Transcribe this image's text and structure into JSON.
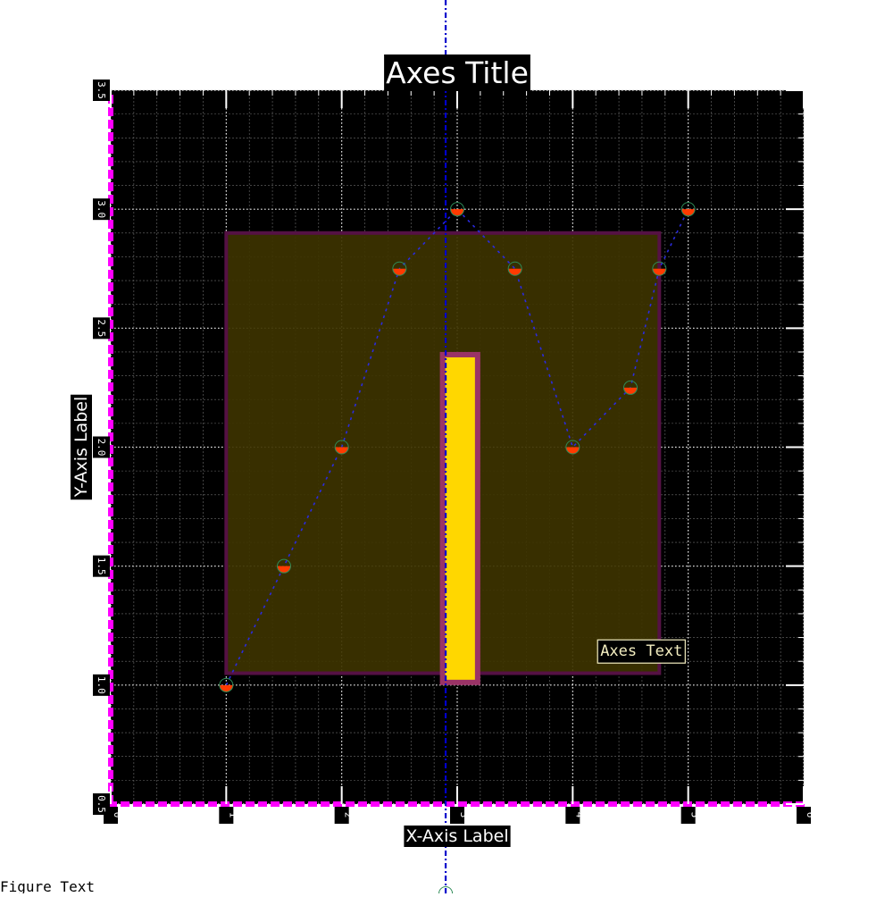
{
  "chart_data": {
    "type": "line",
    "title": "Axes Title",
    "xlabel": "X-Axis Label",
    "ylabel": "Y-Axis Label",
    "xlim": [
      0,
      6
    ],
    "ylim": [
      0.5,
      3.5
    ],
    "x_ticks": [
      "0",
      "1",
      "2",
      "3",
      "4",
      "5",
      "6"
    ],
    "y_ticks": [
      "0.5",
      "1.0",
      "1.5",
      "2.0",
      "2.5",
      "3.0",
      "3.5"
    ],
    "grid": true,
    "series": [
      {
        "x": [
          1,
          1.5,
          2,
          2.5,
          3,
          3.5,
          4,
          4.5,
          4.75,
          5
        ],
        "y": [
          1,
          1.5,
          2,
          2.75,
          3,
          2.75,
          2,
          2.25,
          2.75,
          3
        ]
      }
    ],
    "shaded_region": {
      "x": [
        1,
        4.75
      ],
      "y": [
        1.05,
        2.9
      ]
    },
    "bar": {
      "x": [
        2.85,
        3.2
      ],
      "y": [
        1.0,
        2.4
      ]
    },
    "vertical_line_x": 2.9,
    "annotation": {
      "text": "Axes Text",
      "x": 4.2,
      "y": 1.1
    },
    "colors": {
      "background": "#000000",
      "spine": "#ff00ff",
      "line": "#2a2ae0",
      "marker_face": "#ff3a00",
      "marker_edge": "#2e8b57",
      "region_fill": "#3d3300",
      "region_edge": "#551144",
      "bar_fill": "#ffd700",
      "bar_edge": "#9a3366",
      "vline": "#0000cc"
    }
  },
  "figure_text": "Figure Text"
}
